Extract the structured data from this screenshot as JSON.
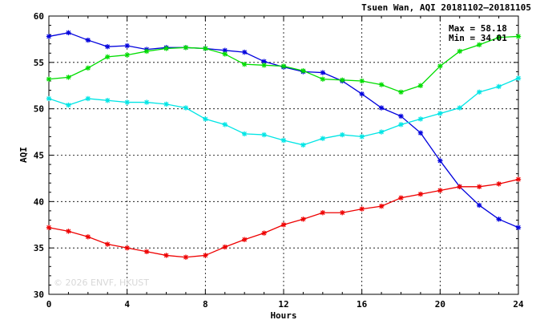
{
  "chart_data": {
    "type": "line",
    "title": "Tsuen Wan, AQI 20181102—20181105",
    "xlabel": "Hours",
    "ylabel": "AQI",
    "xlim": [
      0,
      24
    ],
    "ylim": [
      30,
      60
    ],
    "xticks": [
      0,
      4,
      8,
      12,
      16,
      20,
      24
    ],
    "yticks": [
      30,
      35,
      40,
      45,
      50,
      55,
      60
    ],
    "grid": true,
    "stats": {
      "max": "Max = 58.18",
      "min": "Min = 34.01"
    },
    "watermark": "© 2026 ENVF, HKUST",
    "x": [
      0,
      1,
      2,
      3,
      4,
      5,
      6,
      7,
      8,
      9,
      10,
      11,
      12,
      13,
      14,
      15,
      16,
      17,
      18,
      19,
      20,
      21,
      22,
      23,
      24
    ],
    "series": [
      {
        "color": "#0000dd",
        "values": [
          57.8,
          58.2,
          57.4,
          56.7,
          56.8,
          56.4,
          56.6,
          56.6,
          56.5,
          56.3,
          56.1,
          55.1,
          54.5,
          54.0,
          53.9,
          53.0,
          51.6,
          50.1,
          49.2,
          47.4,
          44.4,
          41.6,
          39.6,
          38.1,
          37.2
        ]
      },
      {
        "color": "#00dd00",
        "values": [
          53.2,
          53.4,
          54.4,
          55.6,
          55.8,
          56.2,
          56.5,
          56.6,
          56.5,
          55.9,
          54.8,
          54.7,
          54.6,
          54.1,
          53.2,
          53.1,
          53.0,
          52.6,
          51.8,
          52.5,
          54.6,
          56.2,
          56.9,
          57.7,
          57.8
        ]
      },
      {
        "color": "#00e5e5",
        "values": [
          51.1,
          50.4,
          51.1,
          50.9,
          50.7,
          50.7,
          50.5,
          50.1,
          48.9,
          48.3,
          47.3,
          47.2,
          46.6,
          46.1,
          46.8,
          47.2,
          47.0,
          47.5,
          48.3,
          48.9,
          49.5,
          50.1,
          51.8,
          52.4,
          53.3
        ]
      },
      {
        "color": "#ee0000",
        "values": [
          37.2,
          36.8,
          36.2,
          35.4,
          35.0,
          34.6,
          34.2,
          34.0,
          34.2,
          35.1,
          35.9,
          36.6,
          37.5,
          38.1,
          38.8,
          38.8,
          39.2,
          39.5,
          40.4,
          40.8,
          41.2,
          41.6,
          41.6,
          41.9,
          42.4
        ]
      }
    ]
  }
}
